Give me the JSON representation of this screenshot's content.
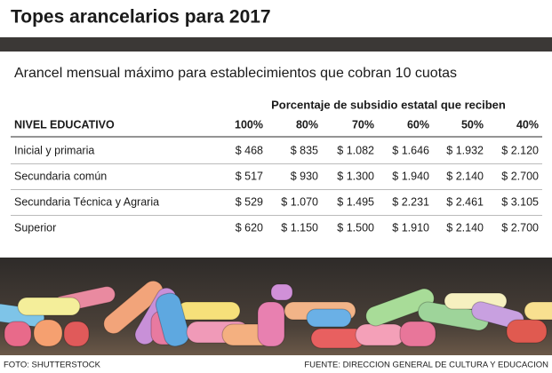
{
  "header": {
    "title": "Topes arancelarios para 2017"
  },
  "subtitle": "Arancel mensual máximo para establecimientos que cobran 10 cuotas",
  "table": {
    "group_header": "Porcentaje de subsidio estatal que reciben",
    "columns": [
      "NIVEL EDUCATIVO",
      "100%",
      "80%",
      "70%",
      "60%",
      "50%",
      "40%"
    ],
    "rows": [
      [
        "Inicial y primaria",
        "$ 468",
        "$ 835",
        "$ 1.082",
        "$ 1.646",
        "$ 1.932",
        "$ 2.120"
      ],
      [
        "Secundaria común",
        "$ 517",
        "$ 930",
        "$ 1.300",
        "$ 1.940",
        "$ 2.140",
        "$ 2.700"
      ],
      [
        "Secundaria Técnica y Agraria",
        "$ 529",
        "$ 1.070",
        "$ 1.495",
        "$ 2.231",
        "$ 2.461",
        "$ 3.105"
      ],
      [
        "Superior",
        "$ 620",
        "$ 1.150",
        "$ 1.500",
        "$ 1.910",
        "$ 2.140",
        "$ 2.700"
      ]
    ]
  },
  "footer": {
    "credit": "FOTO: SHUTTERSTOCK",
    "source": "FUENTE: DIRECCION GENERAL DE CULTURA Y EDUCACION"
  }
}
